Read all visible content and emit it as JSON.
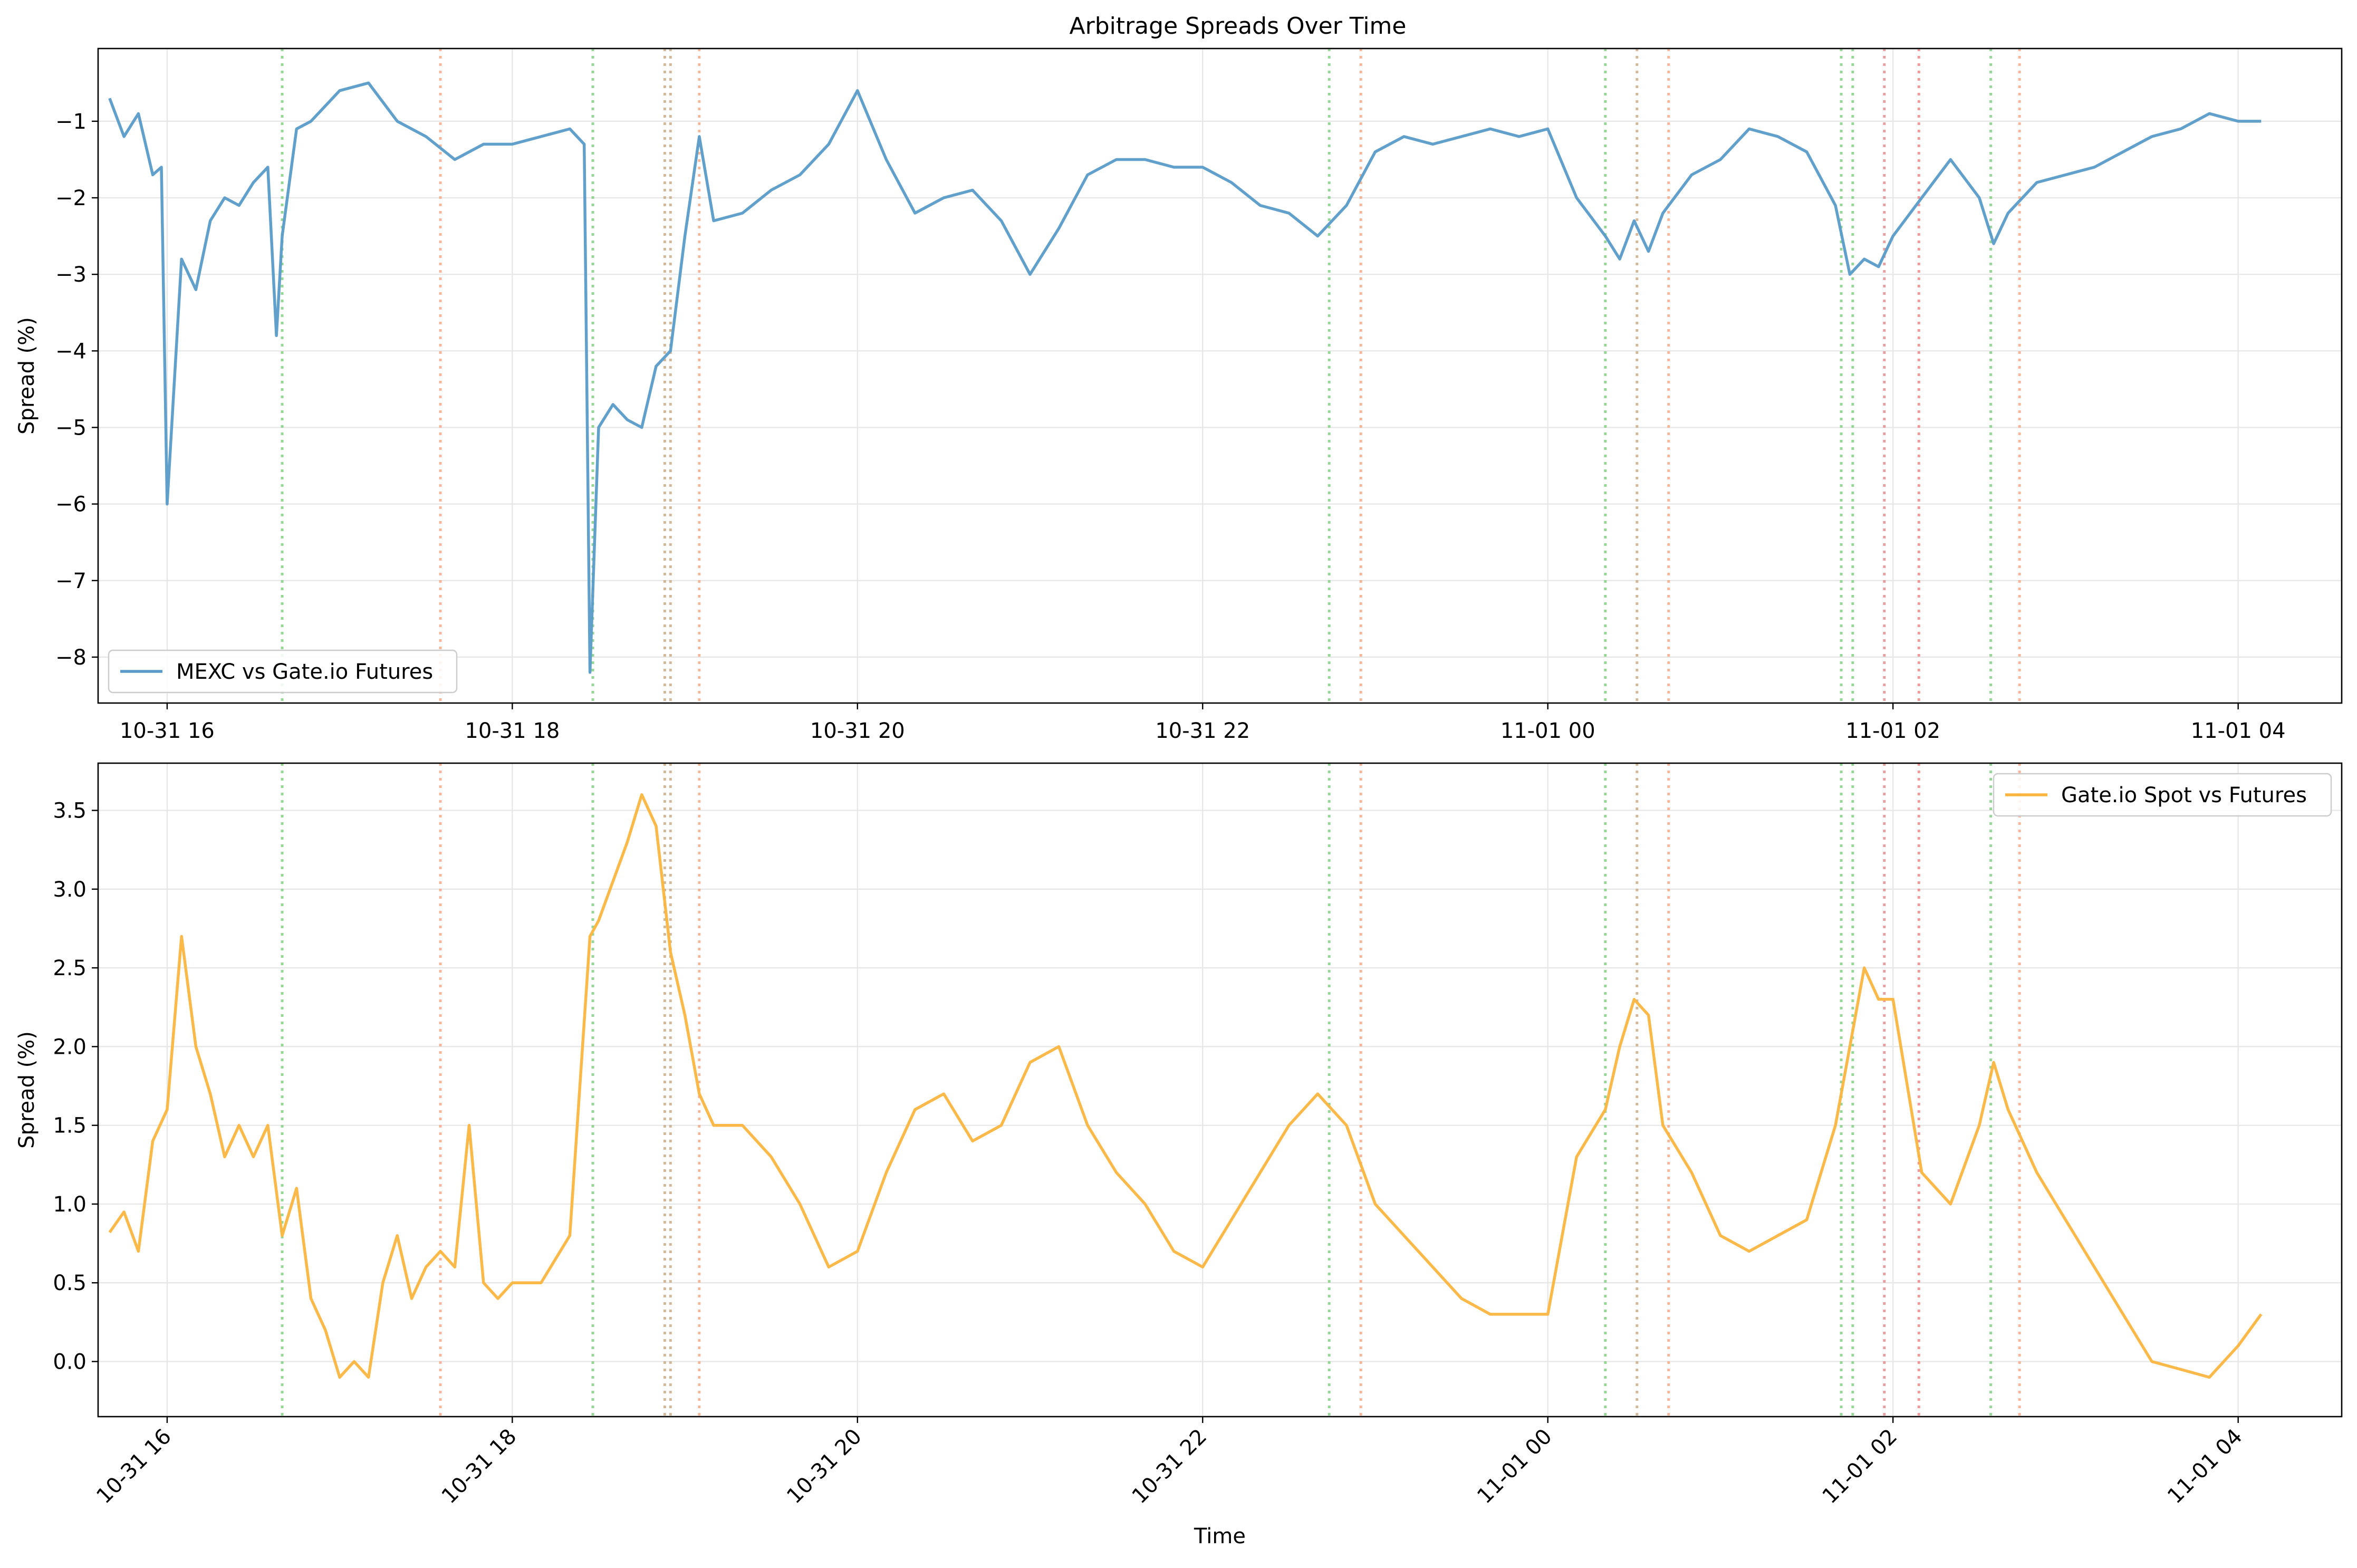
{
  "title": "Arbitrage Spreads Over Time",
  "chart_data": [
    {
      "type": "line",
      "title": "Arbitrage Spreads Over Time",
      "xlabel": "",
      "ylabel": "Spread (%)",
      "xlim": [
        "2024-10-31 15:36",
        "2024-11-01 04:36"
      ],
      "ylim": [
        -8.6,
        -0.05
      ],
      "x_ticks": [
        "2024-10-31 16:00",
        "2024-10-31 18:00",
        "2024-10-31 20:00",
        "2024-10-31 22:00",
        "2024-11-01 00:00",
        "2024-11-01 02:00",
        "2024-11-01 04:00"
      ],
      "x_tick_labels": [
        "10-31 16",
        "10-31 18",
        "10-31 20",
        "10-31 22",
        "11-01 00",
        "11-01 02",
        "11-01 04"
      ],
      "x_tick_rotation": 0,
      "y_ticks": [
        -1,
        -2,
        -3,
        -4,
        -5,
        -6,
        -7,
        -8
      ],
      "y_tick_labels": [
        "−1",
        "−2",
        "−3",
        "−4",
        "−5",
        "−6",
        "−7",
        "−8"
      ],
      "grid": true,
      "legend": "lower-left",
      "series": [
        {
          "name": "MEXC vs Gate.io Futures",
          "color": "#5a9bc9",
          "x": [
            "2024-10-31 15:40",
            "2024-10-31 15:45",
            "2024-10-31 15:50",
            "2024-10-31 15:55",
            "2024-10-31 15:58",
            "2024-10-31 16:00",
            "2024-10-31 16:05",
            "2024-10-31 16:10",
            "2024-10-31 16:15",
            "2024-10-31 16:20",
            "2024-10-31 16:25",
            "2024-10-31 16:30",
            "2024-10-31 16:35",
            "2024-10-31 16:38",
            "2024-10-31 16:40",
            "2024-10-31 16:45",
            "2024-10-31 16:50",
            "2024-10-31 17:00",
            "2024-10-31 17:10",
            "2024-10-31 17:20",
            "2024-10-31 17:30",
            "2024-10-31 17:40",
            "2024-10-31 17:50",
            "2024-10-31 18:00",
            "2024-10-31 18:10",
            "2024-10-31 18:20",
            "2024-10-31 18:25",
            "2024-10-31 18:27",
            "2024-10-31 18:30",
            "2024-10-31 18:35",
            "2024-10-31 18:40",
            "2024-10-31 18:45",
            "2024-10-31 18:50",
            "2024-10-31 18:55",
            "2024-10-31 19:00",
            "2024-10-31 19:05",
            "2024-10-31 19:10",
            "2024-10-31 19:20",
            "2024-10-31 19:30",
            "2024-10-31 19:40",
            "2024-10-31 19:50",
            "2024-10-31 20:00",
            "2024-10-31 20:10",
            "2024-10-31 20:20",
            "2024-10-31 20:30",
            "2024-10-31 20:40",
            "2024-10-31 20:50",
            "2024-10-31 21:00",
            "2024-10-31 21:10",
            "2024-10-31 21:20",
            "2024-10-31 21:30",
            "2024-10-31 21:40",
            "2024-10-31 21:50",
            "2024-10-31 22:00",
            "2024-10-31 22:10",
            "2024-10-31 22:20",
            "2024-10-31 22:30",
            "2024-10-31 22:40",
            "2024-10-31 22:50",
            "2024-10-31 23:00",
            "2024-10-31 23:10",
            "2024-10-31 23:20",
            "2024-10-31 23:30",
            "2024-10-31 23:40",
            "2024-10-31 23:50",
            "2024-11-01 00:00",
            "2024-11-01 00:10",
            "2024-11-01 00:20",
            "2024-11-01 00:25",
            "2024-11-01 00:30",
            "2024-11-01 00:35",
            "2024-11-01 00:40",
            "2024-11-01 00:50",
            "2024-11-01 01:00",
            "2024-11-01 01:10",
            "2024-11-01 01:20",
            "2024-11-01 01:30",
            "2024-11-01 01:40",
            "2024-11-01 01:45",
            "2024-11-01 01:50",
            "2024-11-01 01:55",
            "2024-11-01 02:00",
            "2024-11-01 02:10",
            "2024-11-01 02:20",
            "2024-11-01 02:30",
            "2024-11-01 02:35",
            "2024-11-01 02:40",
            "2024-11-01 02:50",
            "2024-11-01 03:00",
            "2024-11-01 03:10",
            "2024-11-01 03:20",
            "2024-11-01 03:30",
            "2024-11-01 03:40",
            "2024-11-01 03:50",
            "2024-11-01 04:00",
            "2024-11-01 04:08"
          ],
          "values": [
            -0.7,
            -1.2,
            -0.9,
            -1.7,
            -1.6,
            -6.0,
            -2.8,
            -3.2,
            -2.3,
            -2.0,
            -2.1,
            -1.8,
            -1.6,
            -3.8,
            -2.5,
            -1.1,
            -1.0,
            -0.6,
            -0.5,
            -1.0,
            -1.2,
            -1.5,
            -1.3,
            -1.3,
            -1.2,
            -1.1,
            -1.3,
            -8.2,
            -5.0,
            -4.7,
            -4.9,
            -5.0,
            -4.2,
            -4.0,
            -2.5,
            -1.2,
            -2.3,
            -2.2,
            -1.9,
            -1.7,
            -1.3,
            -0.6,
            -1.5,
            -2.2,
            -2.0,
            -1.9,
            -2.3,
            -3.0,
            -2.4,
            -1.7,
            -1.5,
            -1.5,
            -1.6,
            -1.6,
            -1.8,
            -2.1,
            -2.2,
            -2.5,
            -2.1,
            -1.4,
            -1.2,
            -1.3,
            -1.2,
            -1.1,
            -1.2,
            -1.1,
            -2.0,
            -2.5,
            -2.8,
            -2.3,
            -2.7,
            -2.2,
            -1.7,
            -1.5,
            -1.1,
            -1.2,
            -1.4,
            -2.1,
            -3.0,
            -2.8,
            -2.9,
            -2.5,
            -2.0,
            -1.5,
            -2.0,
            -2.6,
            -2.2,
            -1.8,
            -1.7,
            -1.6,
            -1.4,
            -1.2,
            -1.1,
            -0.9,
            -1.0,
            -1.0
          ]
        }
      ],
      "vlines": [
        {
          "x": "2024-10-31 16:40",
          "color": "#7ccd7c"
        },
        {
          "x": "2024-10-31 17:35",
          "color": "#f4a582"
        },
        {
          "x": "2024-10-31 18:28",
          "color": "#7ccd7c"
        },
        {
          "x": "2024-10-31 18:53",
          "color": "#c8a882"
        },
        {
          "x": "2024-10-31 18:55",
          "color": "#c8a882"
        },
        {
          "x": "2024-10-31 19:05",
          "color": "#f4a582"
        },
        {
          "x": "2024-10-31 22:44",
          "color": "#7ccd7c"
        },
        {
          "x": "2024-10-31 22:55",
          "color": "#f4a582"
        },
        {
          "x": "2024-11-01 00:20",
          "color": "#7ccd7c"
        },
        {
          "x": "2024-11-01 00:31",
          "color": "#c8a882"
        },
        {
          "x": "2024-11-01 00:42",
          "color": "#f4a582"
        },
        {
          "x": "2024-11-01 01:42",
          "color": "#7ccd7c"
        },
        {
          "x": "2024-11-01 01:46",
          "color": "#7ccd7c"
        },
        {
          "x": "2024-11-01 01:57",
          "color": "#e08888"
        },
        {
          "x": "2024-11-01 02:09",
          "color": "#f08080"
        },
        {
          "x": "2024-11-01 02:34",
          "color": "#7ccd7c"
        },
        {
          "x": "2024-11-01 02:44",
          "color": "#f4a582"
        }
      ]
    },
    {
      "type": "line",
      "title": "",
      "xlabel": "Time",
      "ylabel": "Spread (%)",
      "xlim": [
        "2024-10-31 15:36",
        "2024-11-01 04:36"
      ],
      "ylim": [
        -0.35,
        3.8
      ],
      "x_ticks": [
        "2024-10-31 16:00",
        "2024-10-31 18:00",
        "2024-10-31 20:00",
        "2024-10-31 22:00",
        "2024-11-01 00:00",
        "2024-11-01 02:00",
        "2024-11-01 04:00"
      ],
      "x_tick_labels": [
        "10-31 16",
        "10-31 18",
        "10-31 20",
        "10-31 22",
        "11-01 00",
        "11-01 02",
        "11-01 04"
      ],
      "x_tick_rotation": 45,
      "y_ticks": [
        0.0,
        0.5,
        1.0,
        1.5,
        2.0,
        2.5,
        3.0,
        3.5
      ],
      "y_tick_labels": [
        "0.0",
        "0.5",
        "1.0",
        "1.5",
        "2.0",
        "2.5",
        "3.0",
        "3.5"
      ],
      "grid": true,
      "legend": "upper-right",
      "series": [
        {
          "name": "Gate.io Spot vs Futures",
          "color": "#fbb53f",
          "x": [
            "2024-10-31 15:40",
            "2024-10-31 15:45",
            "2024-10-31 15:50",
            "2024-10-31 15:55",
            "2024-10-31 16:00",
            "2024-10-31 16:05",
            "2024-10-31 16:10",
            "2024-10-31 16:15",
            "2024-10-31 16:20",
            "2024-10-31 16:25",
            "2024-10-31 16:30",
            "2024-10-31 16:35",
            "2024-10-31 16:40",
            "2024-10-31 16:45",
            "2024-10-31 16:50",
            "2024-10-31 16:55",
            "2024-10-31 17:00",
            "2024-10-31 17:05",
            "2024-10-31 17:10",
            "2024-10-31 17:15",
            "2024-10-31 17:20",
            "2024-10-31 17:25",
            "2024-10-31 17:30",
            "2024-10-31 17:35",
            "2024-10-31 17:40",
            "2024-10-31 17:45",
            "2024-10-31 17:50",
            "2024-10-31 17:55",
            "2024-10-31 18:00",
            "2024-10-31 18:10",
            "2024-10-31 18:20",
            "2024-10-31 18:27",
            "2024-10-31 18:30",
            "2024-10-31 18:40",
            "2024-10-31 18:45",
            "2024-10-31 18:50",
            "2024-10-31 18:55",
            "2024-10-31 19:00",
            "2024-10-31 19:05",
            "2024-10-31 19:10",
            "2024-10-31 19:20",
            "2024-10-31 19:30",
            "2024-10-31 19:40",
            "2024-10-31 19:50",
            "2024-10-31 20:00",
            "2024-10-31 20:10",
            "2024-10-31 20:20",
            "2024-10-31 20:30",
            "2024-10-31 20:40",
            "2024-10-31 20:50",
            "2024-10-31 21:00",
            "2024-10-31 21:10",
            "2024-10-31 21:20",
            "2024-10-31 21:30",
            "2024-10-31 21:40",
            "2024-10-31 21:50",
            "2024-10-31 22:00",
            "2024-10-31 22:10",
            "2024-10-31 22:20",
            "2024-10-31 22:30",
            "2024-10-31 22:40",
            "2024-10-31 22:50",
            "2024-10-31 23:00",
            "2024-10-31 23:10",
            "2024-10-31 23:20",
            "2024-10-31 23:30",
            "2024-10-31 23:40",
            "2024-10-31 23:50",
            "2024-11-01 00:00",
            "2024-11-01 00:10",
            "2024-11-01 00:20",
            "2024-11-01 00:25",
            "2024-11-01 00:30",
            "2024-11-01 00:35",
            "2024-11-01 00:40",
            "2024-11-01 00:50",
            "2024-11-01 01:00",
            "2024-11-01 01:10",
            "2024-11-01 01:20",
            "2024-11-01 01:30",
            "2024-11-01 01:40",
            "2024-11-01 01:45",
            "2024-11-01 01:50",
            "2024-11-01 01:55",
            "2024-11-01 02:00",
            "2024-11-01 02:10",
            "2024-11-01 02:20",
            "2024-11-01 02:30",
            "2024-11-01 02:35",
            "2024-11-01 02:40",
            "2024-11-01 02:50",
            "2024-11-01 03:00",
            "2024-11-01 03:10",
            "2024-11-01 03:20",
            "2024-11-01 03:30",
            "2024-11-01 03:40",
            "2024-11-01 03:50",
            "2024-11-01 04:00",
            "2024-11-01 04:08"
          ],
          "values": [
            0.82,
            0.95,
            0.7,
            1.4,
            1.6,
            2.7,
            2.0,
            1.7,
            1.3,
            1.5,
            1.3,
            1.5,
            0.8,
            1.1,
            0.4,
            0.2,
            -0.1,
            0.0,
            -0.1,
            0.5,
            0.8,
            0.4,
            0.6,
            0.7,
            0.6,
            1.5,
            0.5,
            0.4,
            0.5,
            0.5,
            0.8,
            2.7,
            2.8,
            3.3,
            3.6,
            3.4,
            2.6,
            2.2,
            1.7,
            1.5,
            1.5,
            1.3,
            1.0,
            0.6,
            0.7,
            1.2,
            1.6,
            1.7,
            1.4,
            1.5,
            1.9,
            2.0,
            1.5,
            1.2,
            1.0,
            0.7,
            0.6,
            0.9,
            1.2,
            1.5,
            1.7,
            1.5,
            1.0,
            0.8,
            0.6,
            0.4,
            0.3,
            0.3,
            0.3,
            1.3,
            1.6,
            2.0,
            2.3,
            2.2,
            1.5,
            1.2,
            0.8,
            0.7,
            0.8,
            0.9,
            1.5,
            2.0,
            2.5,
            2.3,
            2.3,
            1.2,
            1.0,
            1.5,
            1.9,
            1.6,
            1.2,
            0.9,
            0.6,
            0.3,
            0.0,
            -0.05,
            -0.1,
            0.1,
            0.3
          ]
        }
      ],
      "vlines": [
        {
          "x": "2024-10-31 16:40",
          "color": "#7ccd7c"
        },
        {
          "x": "2024-10-31 17:35",
          "color": "#f4a582"
        },
        {
          "x": "2024-10-31 18:28",
          "color": "#7ccd7c"
        },
        {
          "x": "2024-10-31 18:53",
          "color": "#c8a882"
        },
        {
          "x": "2024-10-31 18:55",
          "color": "#c8a882"
        },
        {
          "x": "2024-10-31 19:05",
          "color": "#f4a582"
        },
        {
          "x": "2024-10-31 22:44",
          "color": "#7ccd7c"
        },
        {
          "x": "2024-10-31 22:55",
          "color": "#f4a582"
        },
        {
          "x": "2024-11-01 00:20",
          "color": "#7ccd7c"
        },
        {
          "x": "2024-11-01 00:31",
          "color": "#c8a882"
        },
        {
          "x": "2024-11-01 00:42",
          "color": "#f4a582"
        },
        {
          "x": "2024-11-01 01:42",
          "color": "#7ccd7c"
        },
        {
          "x": "2024-11-01 01:46",
          "color": "#7ccd7c"
        },
        {
          "x": "2024-11-01 01:57",
          "color": "#e08888"
        },
        {
          "x": "2024-11-01 02:09",
          "color": "#f08080"
        },
        {
          "x": "2024-11-01 02:34",
          "color": "#7ccd7c"
        },
        {
          "x": "2024-11-01 02:44",
          "color": "#f4a582"
        }
      ]
    }
  ]
}
